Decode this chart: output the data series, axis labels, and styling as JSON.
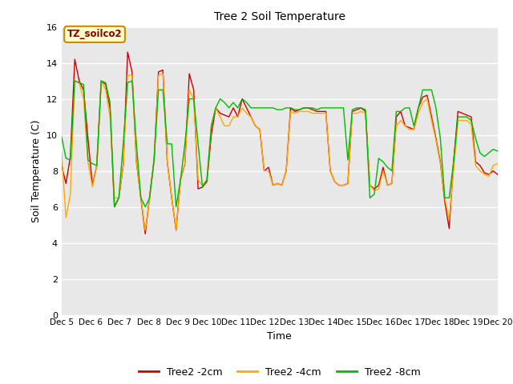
{
  "title": "Tree 2 Soil Temperature",
  "xlabel": "Time",
  "ylabel": "Soil Temperature (C)",
  "legend_label": "TZ_soilco2",
  "ylim": [
    0,
    16
  ],
  "yticks": [
    0,
    2,
    4,
    6,
    8,
    10,
    12,
    14,
    16
  ],
  "xtick_labels": [
    "Dec 5",
    "Dec 6",
    "Dec 7",
    "Dec 8",
    "Dec 9",
    "Dec 10",
    "Dec 11",
    "Dec 12",
    "Dec 13",
    "Dec 14",
    "Dec 15",
    "Dec 16",
    "Dec 17",
    "Dec 18",
    "Dec 19",
    "Dec 20"
  ],
  "fig_bg_color": "#ffffff",
  "plot_bg_color": "#e8e8e8",
  "grid_color": "#ffffff",
  "line_red": "#cc0000",
  "line_orange": "#ffaa00",
  "line_green": "#00bb00",
  "legend_entries": [
    "Tree2 -2cm",
    "Tree2 -4cm",
    "Tree2 -8cm"
  ],
  "label_box_facecolor": "#ffffcc",
  "label_box_edgecolor": "#cc8800",
  "label_text_color": "#880000",
  "red_data": [
    8.3,
    7.3,
    8.8,
    14.2,
    13.0,
    12.5,
    9.8,
    7.2,
    8.3,
    13.0,
    12.8,
    11.5,
    6.0,
    6.5,
    8.3,
    14.6,
    13.5,
    8.5,
    6.5,
    4.5,
    6.6,
    8.6,
    13.5,
    13.6,
    8.5,
    6.5,
    4.7,
    7.5,
    8.4,
    13.4,
    12.5,
    7.0,
    7.1,
    7.4,
    10.0,
    11.5,
    11.2,
    11.1,
    11.0,
    11.5,
    11.0,
    12.0,
    11.5,
    11.0,
    10.5,
    10.3,
    8.0,
    8.2,
    7.2,
    7.3,
    7.2,
    8.0,
    11.5,
    11.3,
    11.4,
    11.5,
    11.5,
    11.4,
    11.3,
    11.3,
    11.3,
    8.0,
    7.4,
    7.2,
    7.2,
    7.3,
    11.3,
    11.4,
    11.5,
    11.3,
    7.2,
    7.0,
    7.2,
    8.2,
    7.2,
    7.3,
    11.0,
    11.3,
    10.5,
    10.4,
    10.3,
    11.5,
    12.1,
    12.2,
    11.0,
    9.8,
    8.5,
    6.3,
    4.8,
    8.5,
    11.3,
    11.2,
    11.1,
    11.0,
    8.5,
    8.3,
    7.9,
    7.8,
    8.0,
    7.8
  ],
  "orange_data": [
    9.0,
    5.4,
    6.7,
    13.0,
    12.9,
    12.0,
    8.5,
    7.1,
    8.3,
    13.0,
    12.5,
    11.0,
    6.5,
    6.5,
    8.3,
    13.3,
    13.3,
    8.5,
    6.5,
    4.7,
    6.5,
    8.6,
    13.3,
    13.4,
    8.5,
    6.5,
    4.7,
    7.5,
    8.4,
    12.5,
    12.0,
    7.5,
    7.2,
    7.5,
    10.5,
    11.5,
    11.0,
    10.5,
    10.5,
    11.0,
    11.0,
    11.5,
    11.2,
    11.0,
    10.5,
    10.3,
    8.0,
    8.0,
    7.2,
    7.3,
    7.2,
    8.0,
    11.3,
    11.2,
    11.3,
    11.3,
    11.3,
    11.2,
    11.2,
    11.2,
    11.2,
    8.0,
    7.4,
    7.2,
    7.2,
    7.3,
    11.2,
    11.2,
    11.3,
    11.2,
    7.2,
    6.9,
    7.0,
    8.0,
    7.2,
    7.3,
    10.5,
    10.8,
    10.5,
    10.3,
    10.3,
    11.2,
    11.8,
    12.0,
    10.8,
    9.7,
    8.4,
    6.5,
    5.3,
    8.0,
    10.8,
    10.8,
    10.8,
    10.6,
    8.3,
    8.0,
    7.8,
    7.7,
    8.3,
    8.4
  ],
  "green_data": [
    9.9,
    8.7,
    8.6,
    13.0,
    12.9,
    12.8,
    8.6,
    8.4,
    8.3,
    13.0,
    12.9,
    11.8,
    6.0,
    6.5,
    9.5,
    12.9,
    13.0,
    9.5,
    6.5,
    6.0,
    6.5,
    8.6,
    12.5,
    12.5,
    9.5,
    9.5,
    6.0,
    7.5,
    9.5,
    12.0,
    12.0,
    9.5,
    7.1,
    7.5,
    10.5,
    11.5,
    12.0,
    11.8,
    11.5,
    11.8,
    11.5,
    12.0,
    11.8,
    11.5,
    11.5,
    11.5,
    11.5,
    11.5,
    11.5,
    11.4,
    11.4,
    11.5,
    11.5,
    11.4,
    11.4,
    11.5,
    11.5,
    11.5,
    11.4,
    11.5,
    11.5,
    11.5,
    11.5,
    11.5,
    11.5,
    8.6,
    11.4,
    11.5,
    11.5,
    11.4,
    6.5,
    6.7,
    8.7,
    8.5,
    8.2,
    8.0,
    11.3,
    11.3,
    11.5,
    11.5,
    10.5,
    11.5,
    12.5,
    12.5,
    12.5,
    11.5,
    9.8,
    6.5,
    6.5,
    8.5,
    11.0,
    11.0,
    11.0,
    10.8,
    9.8,
    9.0,
    8.8,
    9.0,
    9.2,
    9.1
  ]
}
